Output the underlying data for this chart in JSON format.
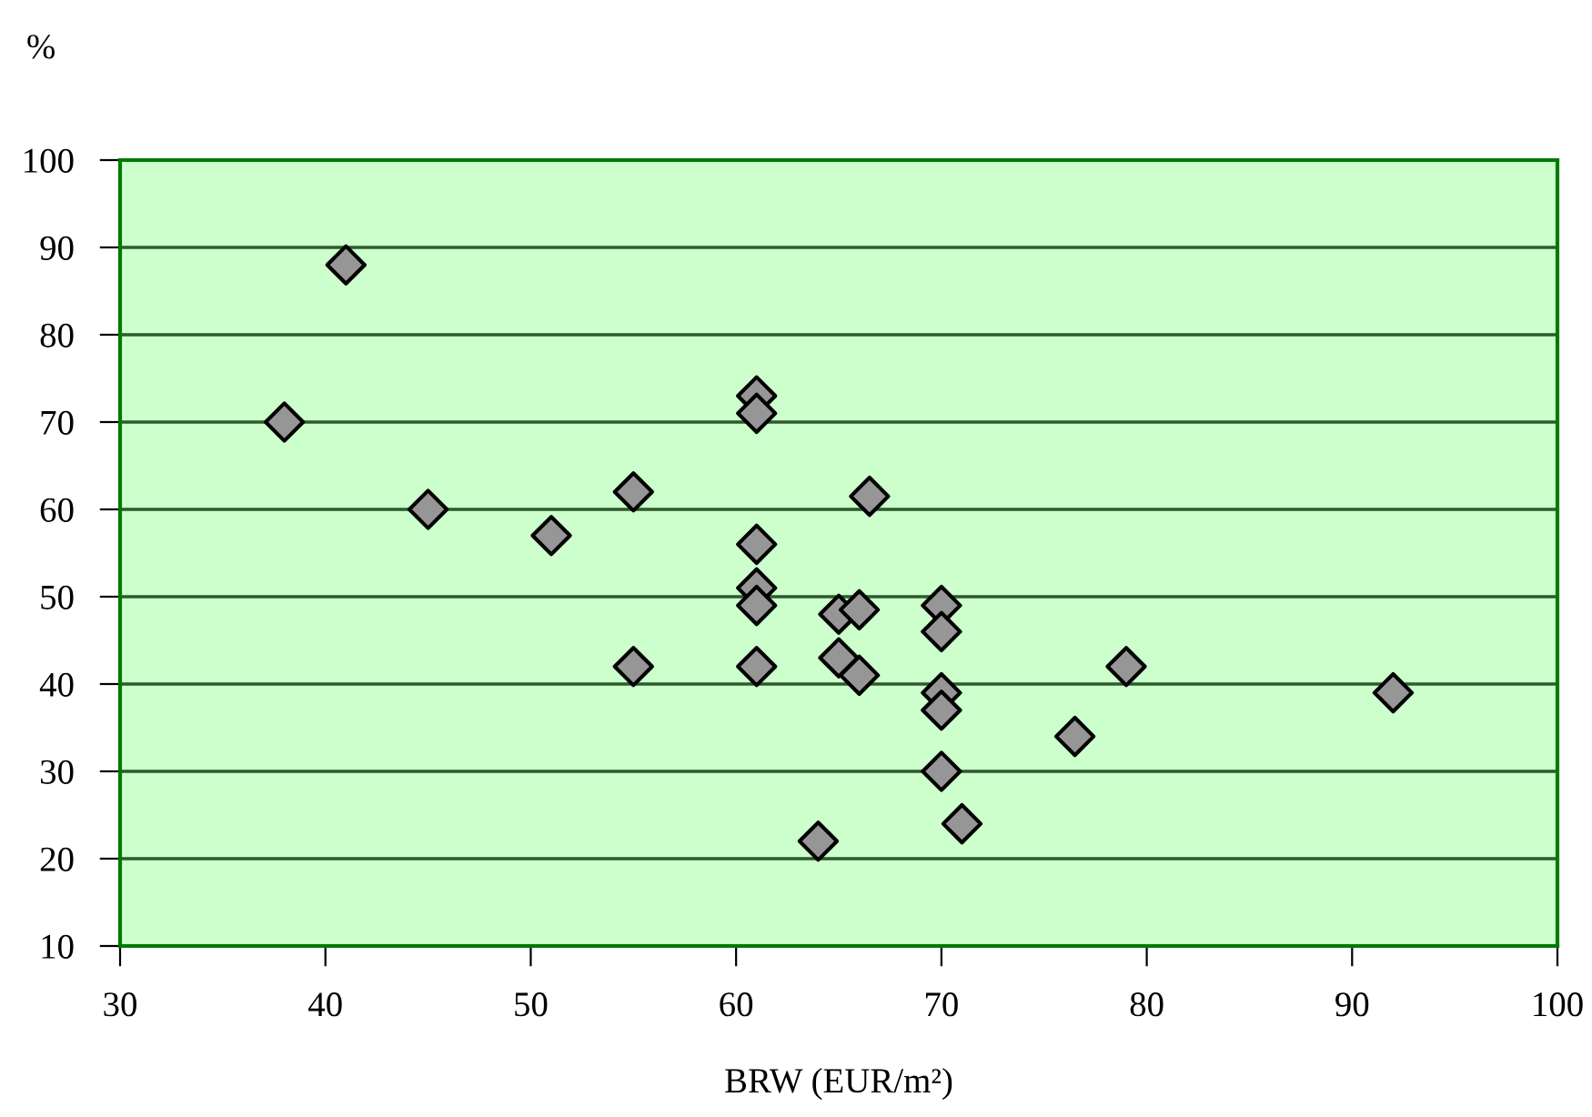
{
  "chart_data": {
    "type": "scatter",
    "xlabel": "BRW (EUR/m²)",
    "ylabel": "%",
    "x": [
      38,
      41,
      45,
      51,
      55,
      55,
      61,
      61,
      61,
      61,
      61,
      61,
      65,
      66,
      65,
      66,
      66.5,
      64,
      70,
      70,
      70,
      70,
      70,
      71,
      76.5,
      79,
      92
    ],
    "series": [
      {
        "color": "#969696",
        "values": [
          70,
          88,
          60,
          57,
          62,
          42,
          73,
          71,
          56,
          51,
          49,
          42,
          48,
          48.5,
          43,
          41,
          61.5,
          22,
          49,
          46,
          39,
          37,
          30,
          24,
          34,
          42,
          39
        ]
      }
    ],
    "xlim": [
      30,
      100
    ],
    "xticks": [
      30,
      40,
      50,
      60,
      70,
      80,
      90,
      100
    ],
    "ylim": [
      10,
      100
    ],
    "yticks": [
      10,
      20,
      30,
      40,
      50,
      60,
      70,
      80,
      90,
      100
    ],
    "grid": "y",
    "marker": "diamond"
  }
}
